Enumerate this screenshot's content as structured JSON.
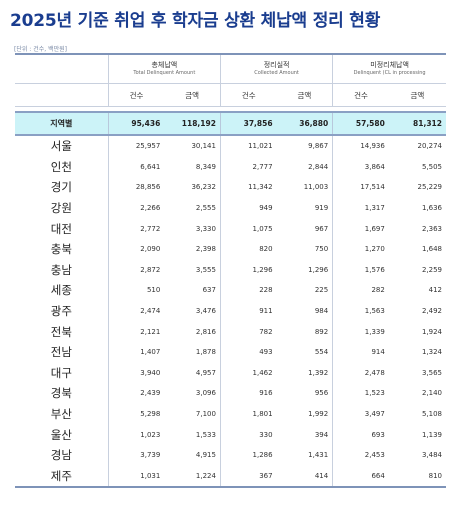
{
  "title": "2025년 기준 취업 후 학자금 상환 체납액 정리 현황",
  "unit_note": "[단위 : 건수, 백만원]",
  "groups": [
    {
      "ko": "총체납액",
      "en": "Total Delinquent Amount"
    },
    {
      "ko": "정리실적",
      "en": "Collected Amount"
    },
    {
      "ko": "미정리체납액",
      "en": "Delinquent (CL in processing"
    }
  ],
  "sub_headers": [
    "건수",
    "금액",
    "건수",
    "금액",
    "건수",
    "금액"
  ],
  "total_row": {
    "region": "지역별",
    "values": [
      "95,436",
      "118,192",
      "37,856",
      "36,880",
      "57,580",
      "81,312"
    ]
  },
  "rows": [
    {
      "region": "서울",
      "values": [
        "25,957",
        "30,141",
        "11,021",
        "9,867",
        "14,936",
        "20,274"
      ]
    },
    {
      "region": "인천",
      "values": [
        "6,641",
        "8,349",
        "2,777",
        "2,844",
        "3,864",
        "5,505"
      ]
    },
    {
      "region": "경기",
      "values": [
        "28,856",
        "36,232",
        "11,342",
        "11,003",
        "17,514",
        "25,229"
      ]
    },
    {
      "region": "강원",
      "values": [
        "2,266",
        "2,555",
        "949",
        "919",
        "1,317",
        "1,636"
      ]
    },
    {
      "region": "대전",
      "values": [
        "2,772",
        "3,330",
        "1,075",
        "967",
        "1,697",
        "2,363"
      ]
    },
    {
      "region": "충북",
      "values": [
        "2,090",
        "2,398",
        "820",
        "750",
        "1,270",
        "1,648"
      ]
    },
    {
      "region": "충남",
      "values": [
        "2,872",
        "3,555",
        "1,296",
        "1,296",
        "1,576",
        "2,259"
      ]
    },
    {
      "region": "세종",
      "values": [
        "510",
        "637",
        "228",
        "225",
        "282",
        "412"
      ]
    },
    {
      "region": "광주",
      "values": [
        "2,474",
        "3,476",
        "911",
        "984",
        "1,563",
        "2,492"
      ]
    },
    {
      "region": "전북",
      "values": [
        "2,121",
        "2,816",
        "782",
        "892",
        "1,339",
        "1,924"
      ]
    },
    {
      "region": "전남",
      "values": [
        "1,407",
        "1,878",
        "493",
        "554",
        "914",
        "1,324"
      ]
    },
    {
      "region": "대구",
      "values": [
        "3,940",
        "4,957",
        "1,462",
        "1,392",
        "2,478",
        "3,565"
      ]
    },
    {
      "region": "경북",
      "values": [
        "2,439",
        "3,096",
        "916",
        "956",
        "1,523",
        "2,140"
      ]
    },
    {
      "region": "부산",
      "values": [
        "5,298",
        "7,100",
        "1,801",
        "1,992",
        "3,497",
        "5,108"
      ]
    },
    {
      "region": "울산",
      "values": [
        "1,023",
        "1,533",
        "330",
        "394",
        "693",
        "1,139"
      ]
    },
    {
      "region": "경남",
      "values": [
        "3,739",
        "4,915",
        "1,286",
        "1,431",
        "2,453",
        "3,484"
      ]
    },
    {
      "region": "제주",
      "values": [
        "1,031",
        "1,224",
        "367",
        "414",
        "664",
        "810"
      ]
    }
  ]
}
